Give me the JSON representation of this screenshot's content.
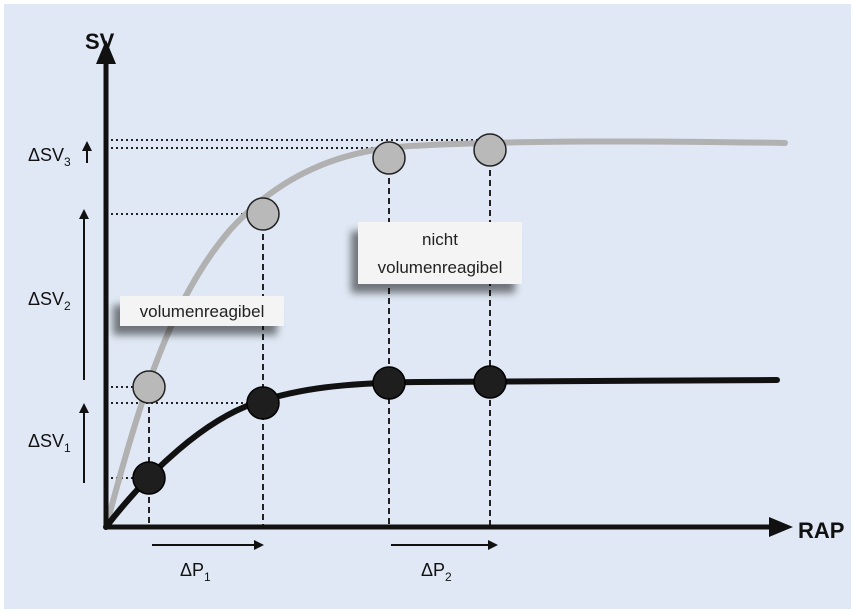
{
  "colors": {
    "panel_background": "#dfe8f4",
    "axis": "#111111",
    "curve_upper": "#b1b1b1",
    "curve_lower": "#111111",
    "marker_upper_fill": "#b9b9b9",
    "marker_lower_fill": "#1e1e1e",
    "label_box_fill": "#f4f4f4"
  },
  "axes": {
    "y_title": "SV",
    "x_title": "RAP"
  },
  "labels": {
    "dsv1": {
      "base": "ΔSV",
      "sub": "1"
    },
    "dsv2": {
      "base": "ΔSV",
      "sub": "2"
    },
    "dsv3": {
      "base": "ΔSV",
      "sub": "3"
    },
    "dp1": {
      "base": "ΔP",
      "sub": "1"
    },
    "dp2": {
      "base": "ΔP",
      "sub": "2"
    }
  },
  "boxes": {
    "responsive": "volumenreagibel",
    "non_responsive_line1": "nicht",
    "non_responsive_line2": "volumenreagibel"
  }
}
